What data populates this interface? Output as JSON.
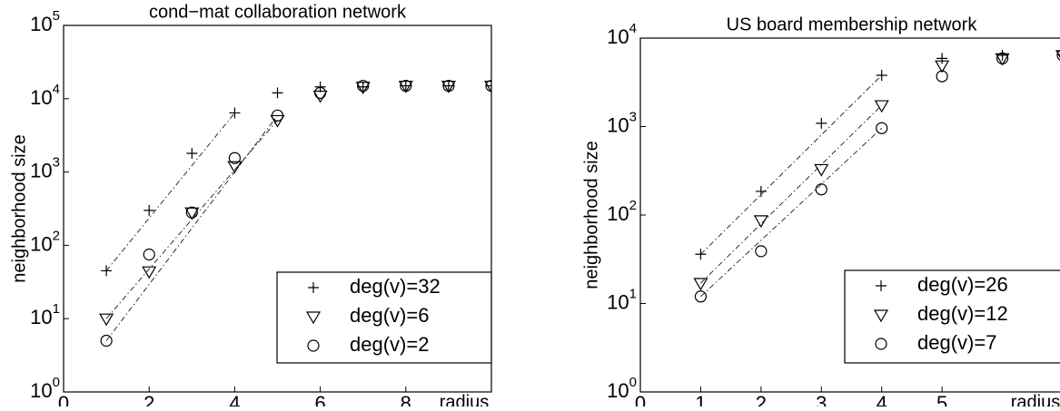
{
  "chart_data": [
    {
      "type": "scatter",
      "title": "cond−mat collaboration network",
      "x_label": "radius",
      "y_label": "neighborhood size",
      "x": [
        1,
        2,
        3,
        4,
        5,
        6,
        7,
        8,
        9,
        10
      ],
      "xlim": [
        0,
        10
      ],
      "xticks": [
        0,
        2,
        4,
        6,
        8
      ],
      "ylim": [
        1,
        100000
      ],
      "log_y": true,
      "yticks": [
        {
          "value": 1,
          "label": "10^0"
        },
        {
          "value": 10,
          "label": "10^1"
        },
        {
          "value": 100,
          "label": "10^2"
        },
        {
          "value": 1000,
          "label": "10^3"
        },
        {
          "value": 10000,
          "label": "10^4"
        },
        {
          "value": 100000,
          "label": "10^5"
        }
      ],
      "legend": "lower right",
      "series": [
        {
          "name": "deg(v)=32",
          "color": "#000000",
          "marker": "plus",
          "values": [
            45,
            300,
            1800,
            6400,
            12000,
            14500,
            14500,
            15000,
            15000,
            15000
          ]
        },
        {
          "name": "deg(v)=6",
          "color": "#000000",
          "marker": "triangle-down",
          "values": [
            10,
            44,
            280,
            1200,
            5100,
            11000,
            14500,
            15000,
            15000,
            15000
          ]
        },
        {
          "name": "deg(v)=2",
          "color": "#000000",
          "marker": "circle",
          "values": [
            5,
            75,
            280,
            1550,
            5900,
            12000,
            15000,
            15000,
            15000,
            15000
          ]
        }
      ]
    },
    {
      "type": "scatter",
      "title": "US board membership network",
      "x_label": "radius",
      "y_label": "neighborhood size",
      "x": [
        1,
        2,
        3,
        4,
        5,
        6,
        7
      ],
      "xlim": [
        0,
        7
      ],
      "xticks": [
        0,
        1,
        2,
        3,
        4,
        5
      ],
      "ylim": [
        1,
        10000
      ],
      "log_y": true,
      "yticks": [
        {
          "value": 1,
          "label": "10^0"
        },
        {
          "value": 10,
          "label": "10^1"
        },
        {
          "value": 100,
          "label": "10^2"
        },
        {
          "value": 1000,
          "label": "10^3"
        },
        {
          "value": 10000,
          "label": "10^4"
        }
      ],
      "legend": "lower right",
      "series": [
        {
          "name": "deg(v)=26",
          "color": "#000000",
          "marker": "plus",
          "values": [
            36,
            185,
            1090,
            3800,
            5900,
            6400,
            6500
          ]
        },
        {
          "name": "deg(v)=12",
          "color": "#000000",
          "marker": "triangle-down",
          "values": [
            17,
            87,
            330,
            1740,
            4900,
            5900,
            6400
          ]
        },
        {
          "name": "deg(v)=7",
          "color": "#000000",
          "marker": "circle",
          "values": [
            12,
            39,
            195,
            960,
            3700,
            5900,
            6400
          ]
        }
      ]
    }
  ]
}
